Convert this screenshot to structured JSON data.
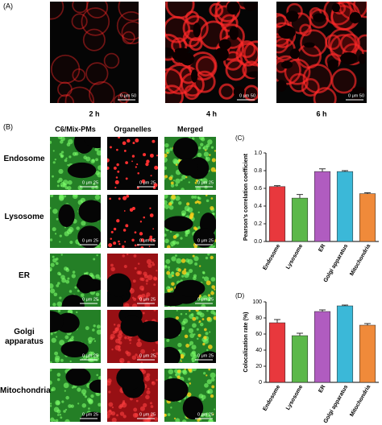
{
  "figure": {
    "panel_a": {
      "label": "(A)",
      "times": [
        "2 h",
        "4 h",
        "6 h"
      ],
      "scale_label": "0 μm 50"
    },
    "panel_b": {
      "label": "(B)",
      "columns": [
        "C6/Mix-PMs",
        "Organelles",
        "Merged"
      ],
      "rows": [
        "Endosome",
        "Lysosome",
        "ER",
        "Golgi apparatus",
        "Mitochondria"
      ],
      "scale_label": "0 μm 25"
    }
  },
  "chart_data": [
    {
      "type": "bar",
      "panel_label": "(C)",
      "y_label": "Pearson's correlation coefficient",
      "categories": [
        "Endosome",
        "Lysosome",
        "ER",
        "Golgi apparatus",
        "Mitochondria"
      ],
      "values": [
        0.62,
        0.49,
        0.79,
        0.79,
        0.54
      ],
      "errors": [
        0.01,
        0.04,
        0.03,
        0.01,
        0.01
      ],
      "colors": [
        "#e8383d",
        "#5cb84a",
        "#b05cc0",
        "#3bb8d8",
        "#f08a3a"
      ],
      "ylim": [
        0,
        1
      ],
      "yticks": [
        {
          "value": 0,
          "label": "0.0"
        },
        0.2,
        0.4,
        0.6,
        0.8,
        {
          "value": 1,
          "label": "1.0"
        }
      ]
    },
    {
      "type": "bar",
      "panel_label": "(D)",
      "y_label": "Colocalization rate (%)",
      "categories": [
        "Endosome",
        "Lysosome",
        "ER",
        "Golgi apparatus",
        "Mitochondria"
      ],
      "values": [
        74,
        58,
        88,
        95,
        71
      ],
      "errors": [
        4,
        3,
        2,
        1,
        2
      ],
      "colors": [
        "#e8383d",
        "#5cb84a",
        "#b05cc0",
        "#3bb8d8",
        "#f08a3a"
      ],
      "ylim": [
        0,
        100
      ],
      "yticks": [
        0,
        20,
        40,
        60,
        80,
        100
      ]
    }
  ]
}
